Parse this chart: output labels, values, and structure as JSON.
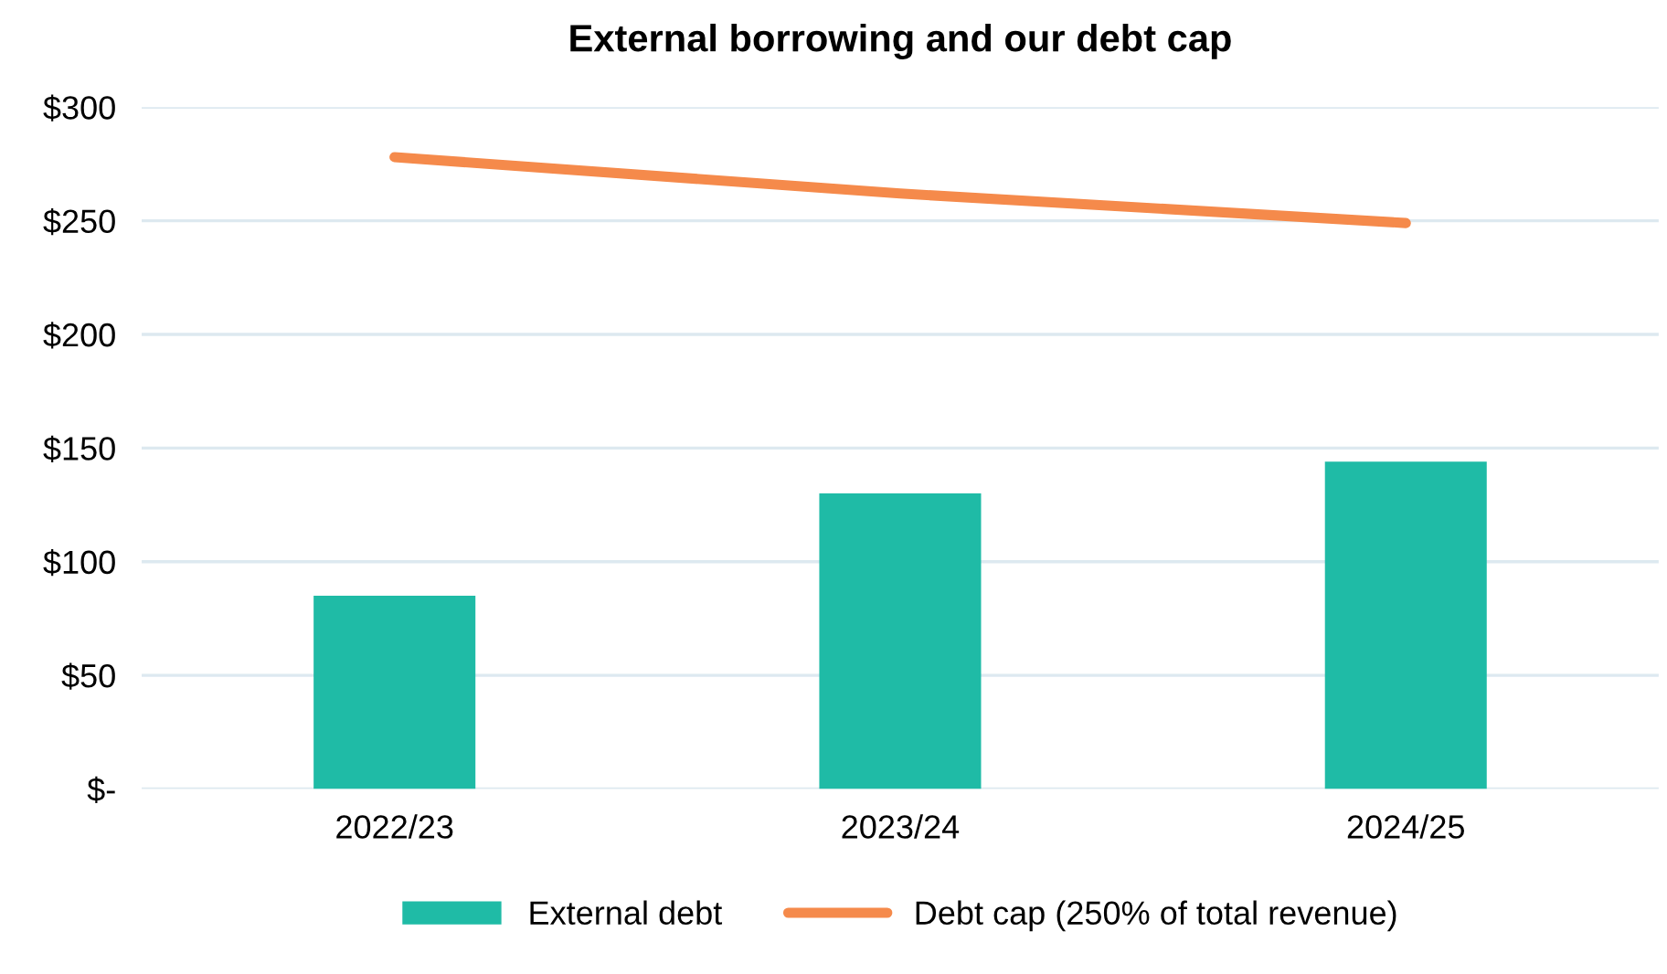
{
  "chart_data": {
    "type": "bar",
    "title": "External borrowing and our debt cap",
    "categories": [
      "2022/23",
      "2023/24",
      "2024/25"
    ],
    "series": [
      {
        "name": "External debt",
        "color": "#1fbba6",
        "values": [
          85,
          130,
          144
        ]
      },
      {
        "name": "Debt cap (250% of total revenue)",
        "type": "line",
        "color": "#f58a4b",
        "values": [
          278,
          262,
          249
        ]
      }
    ],
    "ylim": [
      0,
      300
    ],
    "yticks": [
      {
        "value": 0,
        "label": "$-"
      },
      {
        "value": 50,
        "label": "$50"
      },
      {
        "value": 100,
        "label": "$100"
      },
      {
        "value": 150,
        "label": "$150"
      },
      {
        "value": 200,
        "label": "$200"
      },
      {
        "value": 250,
        "label": "$250"
      },
      {
        "value": 300,
        "label": "$300"
      }
    ],
    "grid": "y",
    "legend": "bottom",
    "marker": "none"
  }
}
